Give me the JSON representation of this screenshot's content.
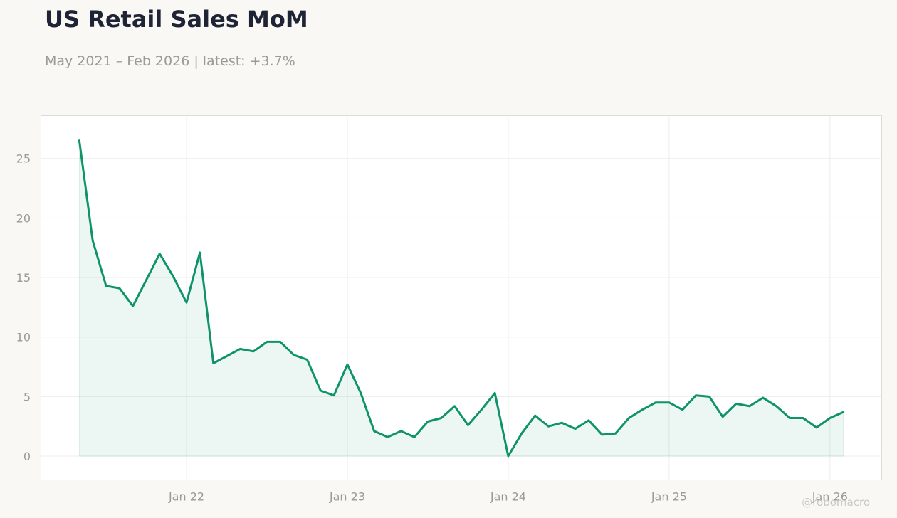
{
  "header": {
    "title": "US Retail Sales MoM",
    "subtitle": "May 2021 – Feb 2026 | latest: +3.7%"
  },
  "watermark": "@robomacro",
  "colors": {
    "line": "#0e936a",
    "fill": "#0e936a",
    "grid": "#ecece9",
    "frame": "#dcdcd6",
    "background": "#f9f8f5",
    "plot_background": "#ffffff"
  },
  "chart_data": {
    "type": "area",
    "title": "US Retail Sales MoM",
    "subtitle": "May 2021 – Feb 2026 | latest: +3.7%",
    "xlabel": "",
    "ylabel": "",
    "x_start": "2021-05",
    "x": [
      "2021-05",
      "2021-06",
      "2021-07",
      "2021-08",
      "2021-09",
      "2021-10",
      "2021-11",
      "2021-12",
      "2022-01",
      "2022-02",
      "2022-03",
      "2022-04",
      "2022-05",
      "2022-06",
      "2022-07",
      "2022-08",
      "2022-09",
      "2022-10",
      "2022-11",
      "2022-12",
      "2023-01",
      "2023-02",
      "2023-03",
      "2023-04",
      "2023-05",
      "2023-06",
      "2023-07",
      "2023-08",
      "2023-09",
      "2023-10",
      "2023-11",
      "2023-12",
      "2024-01",
      "2024-02",
      "2024-03",
      "2024-04",
      "2024-05",
      "2024-06",
      "2024-07",
      "2024-08",
      "2024-09",
      "2024-10",
      "2024-11",
      "2024-12",
      "2025-01",
      "2025-02",
      "2025-03",
      "2025-04",
      "2025-05",
      "2025-06",
      "2025-07",
      "2025-08",
      "2025-09",
      "2025-10",
      "2025-11",
      "2025-12",
      "2026-01",
      "2026-02"
    ],
    "series": [
      {
        "values": [
          26.5,
          18.1,
          14.3,
          14.1,
          12.6,
          14.8,
          17.0,
          15.1,
          12.9,
          17.1,
          7.8,
          8.4,
          9.0,
          8.8,
          9.6,
          9.6,
          8.5,
          8.1,
          5.5,
          5.1,
          7.7,
          5.3,
          2.1,
          1.6,
          2.1,
          1.6,
          2.9,
          3.2,
          4.2,
          2.6,
          3.9,
          5.3,
          0.0,
          1.9,
          3.4,
          2.5,
          2.8,
          2.3,
          3.0,
          1.8,
          1.9,
          3.2,
          3.9,
          4.5,
          4.5,
          3.9,
          5.1,
          5.0,
          3.3,
          4.4,
          4.2,
          4.9,
          4.2,
          3.2,
          3.2,
          2.4,
          3.2,
          3.7
        ]
      }
    ],
    "x_ticks": [
      "Jan 22",
      "Jan 23",
      "Jan 24",
      "Jan 25",
      "Jan 26"
    ],
    "y_ticks": [
      0,
      5,
      10,
      15,
      20,
      25
    ],
    "ylim": [
      -2.0,
      28.6
    ],
    "grid": true,
    "legend": "none"
  }
}
